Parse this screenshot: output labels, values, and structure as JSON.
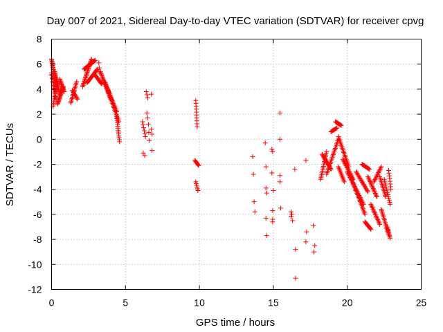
{
  "chart_data": {
    "type": "scatter",
    "title": "Day 007 of 2021, Sidereal Day-to-day VTEC variation (SDTVAR) for receiver cpvg",
    "xlabel": "GPS time / hours",
    "ylabel": "SDTVAR / TECUs",
    "xlim": [
      0,
      25
    ],
    "ylim": [
      -12,
      8
    ],
    "xticks": [
      0,
      5,
      10,
      15,
      20,
      25
    ],
    "yticks": [
      -12,
      -10,
      -8,
      -6,
      -4,
      -2,
      0,
      2,
      4,
      6,
      8
    ],
    "grid": true,
    "marker": "+",
    "color": "#ff0000",
    "segments": [
      {
        "x0": 0.0,
        "x1": 0.35,
        "y0": 6.4,
        "y1": 4.0,
        "n": 30
      },
      {
        "x0": 0.0,
        "x1": 0.3,
        "y0": 5.3,
        "y1": 3.2,
        "n": 20
      },
      {
        "x0": 0.1,
        "x1": 0.35,
        "y0": 2.6,
        "y1": 4.6,
        "n": 16
      },
      {
        "x0": 0.2,
        "x1": 0.55,
        "y0": 5.4,
        "y1": 3.6,
        "n": 22
      },
      {
        "x0": 0.4,
        "x1": 0.8,
        "y0": 2.8,
        "y1": 4.2,
        "n": 20
      },
      {
        "x0": 0.55,
        "x1": 0.85,
        "y0": 4.8,
        "y1": 3.8,
        "n": 14
      },
      {
        "x0": 1.3,
        "x1": 1.7,
        "y0": 2.9,
        "y1": 4.6,
        "n": 16
      },
      {
        "x0": 1.4,
        "x1": 1.75,
        "y0": 3.9,
        "y1": 3.2,
        "n": 10
      },
      {
        "x0": 2.1,
        "x1": 2.7,
        "y0": 4.2,
        "y1": 6.4,
        "n": 26
      },
      {
        "x0": 2.2,
        "x1": 2.95,
        "y0": 5.6,
        "y1": 6.3,
        "n": 22
      },
      {
        "x0": 2.4,
        "x1": 3.1,
        "y0": 4.5,
        "y1": 5.6,
        "n": 20
      },
      {
        "x0": 2.9,
        "x1": 3.4,
        "y0": 5.2,
        "y1": 4.4,
        "n": 14
      },
      {
        "x0": 3.3,
        "x1": 4.0,
        "y0": 5.4,
        "y1": 3.2,
        "n": 26
      },
      {
        "x0": 3.6,
        "x1": 4.4,
        "y0": 4.6,
        "y1": 2.2,
        "n": 26
      },
      {
        "x0": 3.8,
        "x1": 4.55,
        "y0": 4.0,
        "y1": 1.4,
        "n": 24
      },
      {
        "x0": 4.4,
        "x1": 4.6,
        "y0": 1.8,
        "y1": -0.2,
        "n": 14
      },
      {
        "x0": 3.2,
        "x1": 3.25,
        "y0": 6.1,
        "y1": 5.3,
        "n": 3
      },
      {
        "x0": 6.15,
        "x1": 6.35,
        "y0": 1.4,
        "y1": 0.2,
        "n": 6
      },
      {
        "x0": 6.2,
        "x1": 6.3,
        "y0": -1.1,
        "y1": -1.3,
        "n": 2
      },
      {
        "x0": 6.4,
        "x1": 6.5,
        "y0": 3.8,
        "y1": 3.3,
        "n": 3
      },
      {
        "x0": 6.45,
        "x1": 6.5,
        "y0": 2.1,
        "y1": 1.7,
        "n": 2
      },
      {
        "x0": 6.55,
        "x1": 6.6,
        "y0": 1.2,
        "y1": -0.1,
        "n": 3
      },
      {
        "x0": 6.75,
        "x1": 6.8,
        "y0": 0.8,
        "y1": 0.4,
        "n": 2
      },
      {
        "x0": 6.75,
        "x1": 6.8,
        "y0": 3.6,
        "y1": -0.9,
        "n": 2
      },
      {
        "x0": 9.75,
        "x1": 9.85,
        "y0": 3.1,
        "y1": 1.0,
        "n": 10
      },
      {
        "x0": 9.7,
        "x1": 9.95,
        "y0": -1.7,
        "y1": -2.1,
        "n": 8
      },
      {
        "x0": 9.75,
        "x1": 9.9,
        "y0": -3.4,
        "y1": -4.1,
        "n": 6
      }
    ],
    "points": [
      [
        13.6,
        -1.4
      ],
      [
        13.65,
        -2.8
      ],
      [
        13.7,
        -5.0
      ],
      [
        13.75,
        -5.8
      ],
      [
        14.45,
        -0.3
      ],
      [
        14.5,
        -2.2
      ],
      [
        14.5,
        -3.9
      ],
      [
        14.55,
        -4.3
      ],
      [
        14.5,
        -6.3
      ],
      [
        14.55,
        -7.7
      ],
      [
        14.9,
        -0.8
      ],
      [
        14.95,
        -1.0
      ],
      [
        14.9,
        -2.7
      ],
      [
        15.0,
        -4.1
      ],
      [
        14.95,
        -5.7
      ],
      [
        14.95,
        -6.4
      ],
      [
        14.95,
        -6.6
      ],
      [
        15.45,
        2.1
      ],
      [
        15.45,
        0.0
      ],
      [
        15.45,
        -2.9
      ],
      [
        15.45,
        -3.4
      ],
      [
        15.5,
        -5.5
      ],
      [
        16.2,
        -5.8
      ],
      [
        16.25,
        -6.0
      ],
      [
        16.2,
        -6.2
      ],
      [
        16.3,
        -6.5
      ],
      [
        16.45,
        -2.4
      ],
      [
        16.5,
        -8.8
      ],
      [
        16.5,
        -11.1
      ],
      [
        17.2,
        -1.7
      ],
      [
        17.25,
        -7.4
      ],
      [
        17.2,
        -8.2
      ],
      [
        17.7,
        -6.9
      ],
      [
        17.8,
        -8.5
      ],
      [
        17.75,
        -9.0
      ]
    ],
    "late_segments": [
      {
        "x0": 18.2,
        "x1": 18.6,
        "y0": -3.2,
        "y1": -1.0,
        "n": 18
      },
      {
        "x0": 18.3,
        "x1": 18.9,
        "y0": -1.2,
        "y1": -2.4,
        "n": 18
      },
      {
        "x0": 18.6,
        "x1": 19.4,
        "y0": -2.8,
        "y1": 0.0,
        "n": 24
      },
      {
        "x0": 18.9,
        "x1": 19.3,
        "y0": 0.6,
        "y1": 0.9,
        "n": 10
      },
      {
        "x0": 19.2,
        "x1": 19.6,
        "y0": 1.4,
        "y1": 1.1,
        "n": 10
      },
      {
        "x0": 19.4,
        "x1": 19.8,
        "y0": -2.2,
        "y1": -3.4,
        "n": 12
      },
      {
        "x0": 19.4,
        "x1": 20.1,
        "y0": 0.2,
        "y1": -2.2,
        "n": 22
      },
      {
        "x0": 19.7,
        "x1": 20.4,
        "y0": -1.6,
        "y1": -3.2,
        "n": 20
      },
      {
        "x0": 20.0,
        "x1": 21.1,
        "y0": -2.6,
        "y1": -5.2,
        "n": 30
      },
      {
        "x0": 20.3,
        "x1": 21.2,
        "y0": -3.2,
        "y1": -6.0,
        "n": 26
      },
      {
        "x0": 20.6,
        "x1": 21.4,
        "y0": -2.6,
        "y1": -4.2,
        "n": 20
      },
      {
        "x0": 21.2,
        "x1": 21.6,
        "y0": -6.6,
        "y1": -7.2,
        "n": 12
      },
      {
        "x0": 21.0,
        "x1": 21.5,
        "y0": -2.0,
        "y1": -2.4,
        "n": 12
      },
      {
        "x0": 21.4,
        "x1": 22.0,
        "y0": -3.0,
        "y1": -4.6,
        "n": 18
      },
      {
        "x0": 21.6,
        "x1": 22.2,
        "y0": -5.2,
        "y1": -6.8,
        "n": 18
      },
      {
        "x0": 21.8,
        "x1": 22.3,
        "y0": -3.4,
        "y1": -2.2,
        "n": 14
      },
      {
        "x0": 22.2,
        "x1": 22.6,
        "y0": -3.0,
        "y1": -4.6,
        "n": 14
      },
      {
        "x0": 22.3,
        "x1": 22.8,
        "y0": -5.6,
        "y1": -7.6,
        "n": 18
      },
      {
        "x0": 22.5,
        "x1": 22.9,
        "y0": -3.2,
        "y1": -5.2,
        "n": 14
      },
      {
        "x0": 22.7,
        "x1": 22.9,
        "y0": -7.0,
        "y1": -7.9,
        "n": 10
      },
      {
        "x0": 22.8,
        "x1": 22.95,
        "y0": -2.5,
        "y1": -4.0,
        "n": 8
      }
    ]
  }
}
